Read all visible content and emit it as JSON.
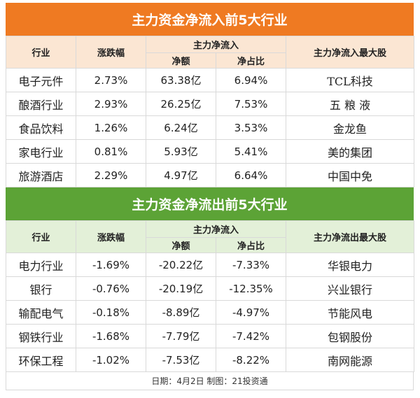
{
  "inflow": {
    "title": "主力资金净流入前5大行业",
    "headers": {
      "industry": "行业",
      "change": "涨跌幅",
      "netflow_group": "主力净流入",
      "amount": "净额",
      "ratio": "净占比",
      "top_stock": "主力净流入最大股"
    },
    "rows": [
      {
        "industry": "电子元件",
        "change": "2.73%",
        "amount": "63.38亿",
        "ratio": "6.94%",
        "stock": "TCL科技"
      },
      {
        "industry": "酿酒行业",
        "change": "2.93%",
        "amount": "26.25亿",
        "ratio": "7.53%",
        "stock": "五 粮 液"
      },
      {
        "industry": "食品饮料",
        "change": "1.26%",
        "amount": "6.24亿",
        "ratio": "3.53%",
        "stock": "金龙鱼"
      },
      {
        "industry": "家电行业",
        "change": "0.81%",
        "amount": "5.93亿",
        "ratio": "5.41%",
        "stock": "美的集团"
      },
      {
        "industry": "旅游酒店",
        "change": "2.29%",
        "amount": "4.97亿",
        "ratio": "6.64%",
        "stock": "中国中免"
      }
    ]
  },
  "outflow": {
    "title": "主力资金净流出前5大行业",
    "headers": {
      "industry": "行业",
      "change": "涨跌幅",
      "netflow_group": "主力净流入",
      "amount": "净额",
      "ratio": "净占比",
      "top_stock": "主力净流出最大股"
    },
    "rows": [
      {
        "industry": "电力行业",
        "change": "-1.69%",
        "amount": "-20.22亿",
        "ratio": "-7.33%",
        "stock": "华银电力"
      },
      {
        "industry": "银行",
        "change": "-0.76%",
        "amount": "-20.19亿",
        "ratio": "-12.35%",
        "stock": "兴业银行"
      },
      {
        "industry": "输配电气",
        "change": "-0.18%",
        "amount": "-8.89亿",
        "ratio": "-4.97%",
        "stock": "节能风电"
      },
      {
        "industry": "钢铁行业",
        "change": "-1.68%",
        "amount": "-7.79亿",
        "ratio": "-7.42%",
        "stock": "包钢股份"
      },
      {
        "industry": "环保工程",
        "change": "-1.02%",
        "amount": "-7.53亿",
        "ratio": "-8.22%",
        "stock": "南网能源"
      }
    ]
  },
  "footer": "日期：4月2日 制图：21投资通",
  "colors": {
    "inflow_banner": "#ef7a22",
    "inflow_header": "#fbe6d3",
    "outflow_banner": "#5ca336",
    "outflow_header": "#e3f0d8"
  }
}
